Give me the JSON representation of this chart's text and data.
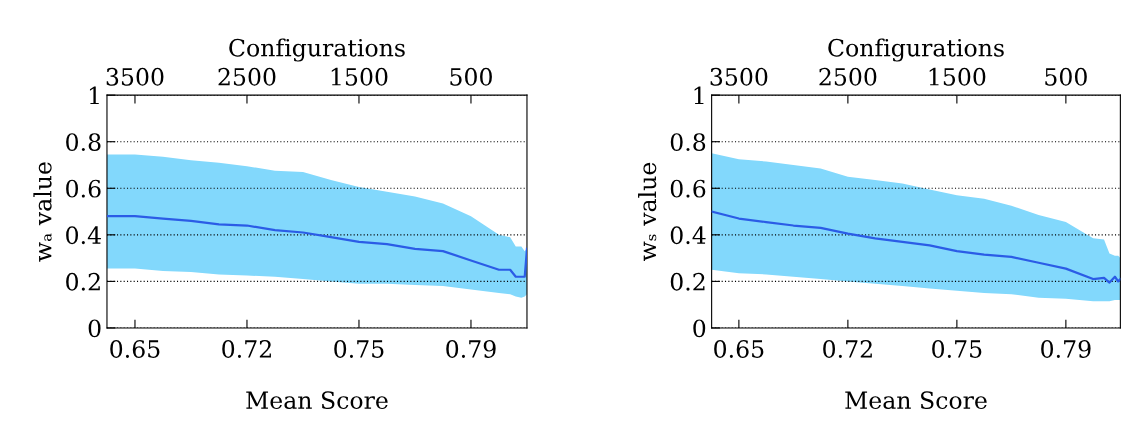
{
  "chart_data": [
    {
      "type": "line",
      "xlabel": "Configurations",
      "ylabel": "wₐ value",
      "x": [
        3750,
        3500,
        3250,
        3000,
        2750,
        2500,
        2250,
        2000,
        1750,
        1500,
        1250,
        1000,
        750,
        500,
        250,
        150,
        100,
        50,
        20,
        0
      ],
      "series": [
        {
          "color": "#2b5ce6",
          "values": [
            0.48,
            0.48,
            0.47,
            0.46,
            0.445,
            0.44,
            0.42,
            0.41,
            0.39,
            0.37,
            0.36,
            0.34,
            0.33,
            0.29,
            0.25,
            0.25,
            0.22,
            0.22,
            0.22,
            0.34
          ],
          "upper": [
            0.745,
            0.745,
            0.735,
            0.72,
            0.71,
            0.695,
            0.675,
            0.67,
            0.635,
            0.605,
            0.585,
            0.565,
            0.535,
            0.48,
            0.4,
            0.39,
            0.35,
            0.35,
            0.33,
            0.34
          ],
          "lower": [
            0.255,
            0.255,
            0.245,
            0.24,
            0.23,
            0.225,
            0.22,
            0.21,
            0.2,
            0.19,
            0.19,
            0.185,
            0.18,
            0.165,
            0.15,
            0.145,
            0.135,
            0.13,
            0.135,
            0.145
          ]
        }
      ],
      "xlim": [
        3750,
        0
      ],
      "xticks": [
        3500,
        2500,
        1500,
        500
      ],
      "annotations": [
        {
          "text": "0.65",
          "x": 3500
        },
        {
          "text": "0.72",
          "x": 2500
        },
        {
          "text": "0.75",
          "x": 1500
        },
        {
          "text": "0.79",
          "x": 500
        },
        "Mean Score"
      ],
      "ylim": [
        0,
        1
      ],
      "yticks": [
        0,
        0.2,
        0.4,
        0.6,
        0.8,
        1
      ],
      "grid": "y"
    },
    {
      "type": "line",
      "xlabel": "Configurations",
      "ylabel": "wₛ value",
      "x": [
        3750,
        3500,
        3250,
        3000,
        2750,
        2500,
        2250,
        2000,
        1750,
        1500,
        1250,
        1000,
        750,
        500,
        250,
        150,
        100,
        50,
        20,
        0
      ],
      "series": [
        {
          "color": "#2b5ce6",
          "values": [
            0.5,
            0.47,
            0.455,
            0.44,
            0.43,
            0.405,
            0.385,
            0.37,
            0.355,
            0.33,
            0.315,
            0.305,
            0.28,
            0.255,
            0.21,
            0.215,
            0.195,
            0.22,
            0.2,
            0.21
          ],
          "upper": [
            0.75,
            0.725,
            0.715,
            0.7,
            0.685,
            0.65,
            0.635,
            0.62,
            0.595,
            0.57,
            0.555,
            0.525,
            0.485,
            0.455,
            0.385,
            0.38,
            0.32,
            0.31,
            0.31,
            0.3
          ],
          "lower": [
            0.25,
            0.235,
            0.23,
            0.22,
            0.21,
            0.2,
            0.19,
            0.18,
            0.17,
            0.16,
            0.15,
            0.145,
            0.13,
            0.125,
            0.115,
            0.115,
            0.115,
            0.12,
            0.12,
            0.12
          ]
        }
      ],
      "xlim": [
        3750,
        0
      ],
      "xticks": [
        3500,
        2500,
        1500,
        500
      ],
      "annotations": [
        {
          "text": "0.65",
          "x": 3500
        },
        {
          "text": "0.72",
          "x": 2500
        },
        {
          "text": "0.75",
          "x": 1500
        },
        {
          "text": "0.79",
          "x": 500
        },
        "Mean Score"
      ],
      "ylim": [
        0,
        1
      ],
      "yticks": [
        0,
        0.2,
        0.4,
        0.6,
        0.8,
        1
      ],
      "grid": "y"
    }
  ]
}
